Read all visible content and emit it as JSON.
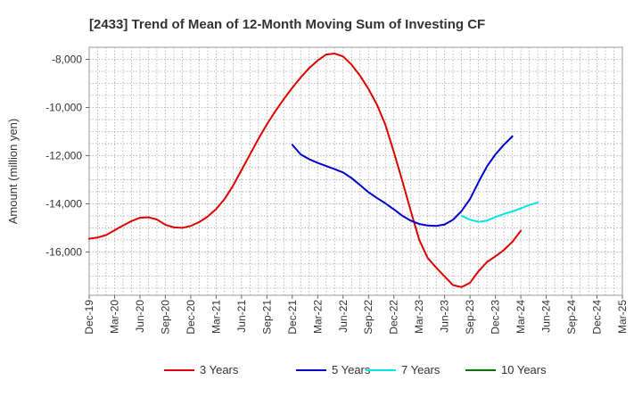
{
  "chart_data": {
    "type": "line",
    "title": "[2433]  Trend of Mean of 12-Month Moving Sum of Investing CF",
    "xlabel": "",
    "ylabel": "Amount (million yen)",
    "ylim": [
      -17800,
      -7500
    ],
    "yticks": [
      -16000,
      -14000,
      -12000,
      -10000,
      -8000
    ],
    "ytick_labels": [
      "-16,000",
      "-14,000",
      "-12,000",
      "-10,000",
      "-8,000"
    ],
    "x_categories": [
      "Dec-19",
      "Mar-20",
      "Jun-20",
      "Sep-20",
      "Dec-20",
      "Mar-21",
      "Jun-21",
      "Sep-21",
      "Dec-21",
      "Mar-22",
      "Jun-22",
      "Sep-22",
      "Dec-22",
      "Mar-23",
      "Jun-23",
      "Sep-23",
      "Dec-23",
      "Mar-24",
      "Jun-24",
      "Sep-24",
      "Dec-24",
      "Mar-25"
    ],
    "grid": true,
    "legend_position": "bottom",
    "series": [
      {
        "name": "3 Years",
        "color": "#dd0000",
        "start_index": 0,
        "values": [
          -15450,
          -15400,
          -15300,
          -15100,
          -14900,
          -14720,
          -14580,
          -14560,
          -14650,
          -14870,
          -14980,
          -15000,
          -14920,
          -14760,
          -14530,
          -14220,
          -13800,
          -13250,
          -12600,
          -11950,
          -11300,
          -10700,
          -10150,
          -9650,
          -9180,
          -8750,
          -8360,
          -8050,
          -7800,
          -7760,
          -7880,
          -8220,
          -8680,
          -9230,
          -9880,
          -10720,
          -11850,
          -13050,
          -14300,
          -15500,
          -16250,
          -16650,
          -17020,
          -17380,
          -17460,
          -17280,
          -16800,
          -16420,
          -16180,
          -15920,
          -15580,
          -15120
        ]
      },
      {
        "name": "5 Years",
        "color": "#0000cc",
        "start_index": 24,
        "values": [
          -11550,
          -11950,
          -12150,
          -12300,
          -12430,
          -12560,
          -12700,
          -12930,
          -13220,
          -13520,
          -13760,
          -13980,
          -14230,
          -14500,
          -14700,
          -14840,
          -14900,
          -14920,
          -14860,
          -14660,
          -14300,
          -13800,
          -13100,
          -12450,
          -11950,
          -11550,
          -11200
        ]
      },
      {
        "name": "7 Years",
        "color": "#00e5e5",
        "start_index": 44,
        "values": [
          -14500,
          -14660,
          -14750,
          -14700,
          -14550,
          -14420,
          -14320,
          -14190,
          -14050,
          -13950
        ]
      },
      {
        "name": "10 Years",
        "color": "#007700",
        "start_index": 0,
        "values": []
      }
    ]
  }
}
